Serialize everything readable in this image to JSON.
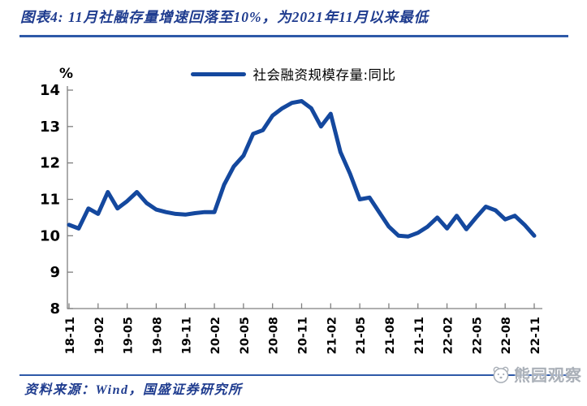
{
  "header": {
    "title": "图表4: 11月社融存量增速回落至10%，为2021年11月以来最低"
  },
  "legend": {
    "label": "社会融资规模存量:同比"
  },
  "footer": {
    "source": "资料来源：Wind，国盛证券研究所"
  },
  "watermark": {
    "icon": "bear-icon",
    "text": "熊园观察"
  },
  "colors": {
    "title_blue": "#1F3C8F",
    "rule_blue": "#2E59A8",
    "line_blue": "#14489E",
    "axis_gray": "#7f7f7f",
    "label_black": "#000000",
    "watermark_gray": "#aab0b8"
  },
  "chart_data": {
    "type": "line",
    "title": "图表4: 11月社融存量增速回落至10%，为2021年11月以来最低",
    "unit_label": "%",
    "xlabel": "",
    "ylabel": "%",
    "ylim": [
      8,
      14
    ],
    "y_ticks": [
      8,
      9,
      10,
      11,
      12,
      13,
      14
    ],
    "grid": false,
    "legend_position": "top-center",
    "x": [
      "18-11",
      "18-12",
      "19-01",
      "19-02",
      "19-03",
      "19-04",
      "19-05",
      "19-06",
      "19-07",
      "19-08",
      "19-09",
      "19-10",
      "19-11",
      "19-12",
      "20-01",
      "20-02",
      "20-03",
      "20-04",
      "20-05",
      "20-06",
      "20-07",
      "20-08",
      "20-09",
      "20-10",
      "20-11",
      "20-12",
      "21-01",
      "21-02",
      "21-03",
      "21-04",
      "21-05",
      "21-06",
      "21-07",
      "21-08",
      "21-09",
      "21-10",
      "21-11",
      "21-12",
      "22-01",
      "22-02",
      "22-03",
      "22-04",
      "22-05",
      "22-06",
      "22-07",
      "22-08",
      "22-09",
      "22-10",
      "22-11"
    ],
    "x_tick_labels": [
      "18-11",
      "19-02",
      "19-05",
      "19-08",
      "19-11",
      "20-02",
      "20-05",
      "20-08",
      "20-11",
      "21-02",
      "21-05",
      "21-08",
      "21-11",
      "22-02",
      "22-05",
      "22-08",
      "22-11"
    ],
    "series": [
      {
        "name": "社会融资规模存量:同比",
        "color": "#14489E",
        "values": [
          10.3,
          10.2,
          10.75,
          10.6,
          11.2,
          10.75,
          10.95,
          11.2,
          10.9,
          10.72,
          10.65,
          10.6,
          10.58,
          10.62,
          10.65,
          10.65,
          11.4,
          11.9,
          12.2,
          12.8,
          12.9,
          13.3,
          13.5,
          13.65,
          13.7,
          13.5,
          13.0,
          13.35,
          12.3,
          11.7,
          11.0,
          11.05,
          10.65,
          10.25,
          10.0,
          9.98,
          10.08,
          10.25,
          10.5,
          10.2,
          10.55,
          10.18,
          10.5,
          10.8,
          10.7,
          10.45,
          10.55,
          10.3,
          10.0
        ]
      }
    ]
  }
}
